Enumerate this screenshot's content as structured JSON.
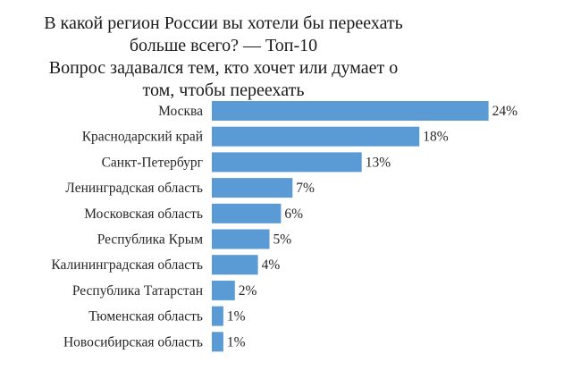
{
  "chart_data": {
    "type": "bar",
    "orientation": "horizontal",
    "title_lines": [
      "В какой регион России вы хотели бы переехать",
      "больше всего? — Топ-10",
      "Вопрос задавался тем, кто хочет или думает о",
      "том, чтобы переехать"
    ],
    "categories": [
      "Москва",
      "Краснодарский край",
      "Санкт-Петербург",
      "Ленинградская область",
      "Московская область",
      "Республика Крым",
      "Калининградская область",
      "Республика Татарстан",
      "Тюменская область",
      "Новосибирская область"
    ],
    "values": [
      24,
      18,
      13,
      7,
      6,
      5,
      4,
      2,
      1,
      1
    ],
    "value_labels": [
      "24%",
      "18%",
      "13%",
      "7%",
      "6%",
      "5%",
      "4%",
      "2%",
      "1%",
      "1%"
    ],
    "unit": "%",
    "bar_color": "#5b9bd5",
    "grid": false,
    "legend": "none"
  }
}
